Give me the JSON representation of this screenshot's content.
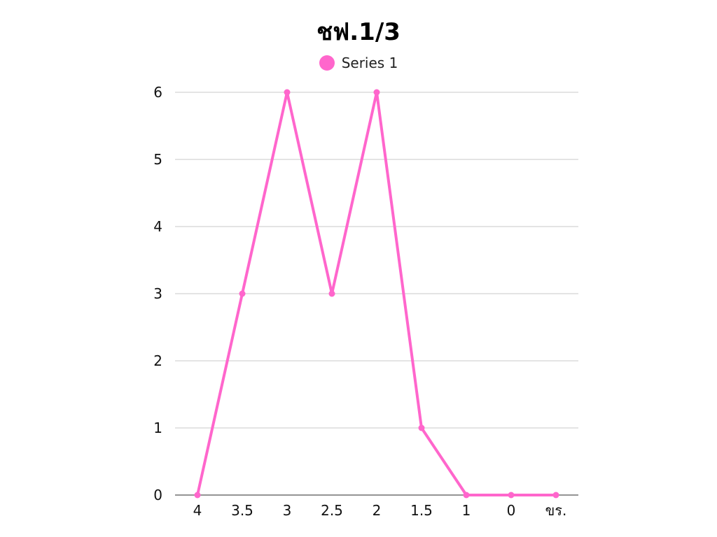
{
  "chart_data": {
    "type": "line",
    "title": "ชฟ.1/3",
    "xlabel": "",
    "ylabel": "",
    "categories": [
      "4",
      "3.5",
      "3",
      "2.5",
      "2",
      "1.5",
      "1",
      "0",
      "ขร."
    ],
    "series": [
      {
        "name": "Series 1",
        "values": [
          0,
          3,
          6,
          3,
          6,
          1,
          0,
          0,
          0
        ],
        "color": "#ff66cc"
      }
    ],
    "ylim": [
      0,
      6
    ],
    "yticks": [
      0,
      1,
      2,
      3,
      4,
      5,
      6
    ],
    "grid": true,
    "legend_position": "top-center",
    "gridline_color": "#c8c8c8",
    "axis_color": "#555555"
  }
}
